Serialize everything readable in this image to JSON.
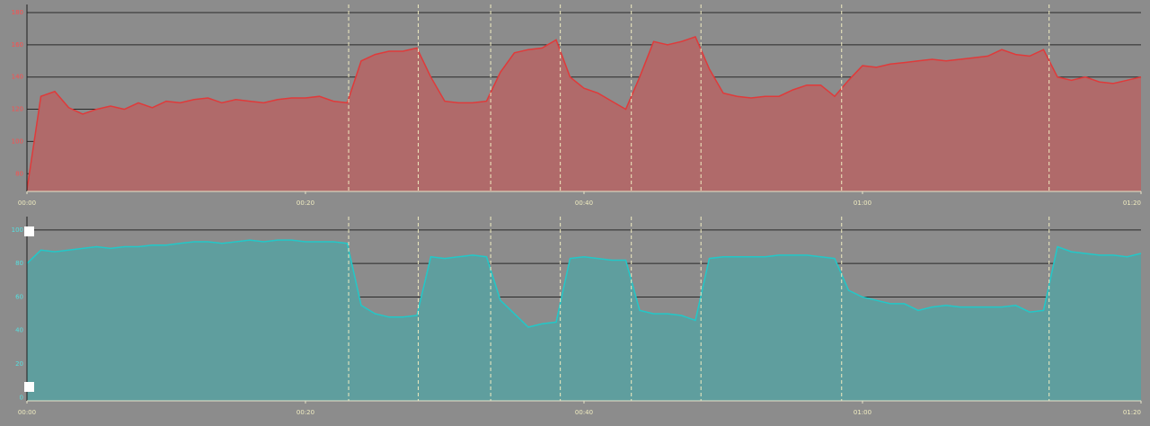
{
  "chart_data": [
    {
      "type": "area",
      "color": "#e03a3a",
      "fill": "#b06a6a",
      "label_color": "#ff4d4d",
      "x": [
        0,
        1,
        2,
        3,
        4,
        5,
        6,
        7,
        8,
        9,
        10,
        11,
        12,
        13,
        14,
        15,
        16,
        17,
        18,
        19,
        20,
        21,
        22,
        23,
        24,
        25,
        26,
        27,
        28,
        29,
        30,
        31,
        32,
        33,
        34,
        35,
        36,
        37,
        38,
        39,
        40,
        41,
        42,
        43,
        44,
        45,
        46,
        47,
        48,
        49,
        50,
        51,
        52,
        53,
        54,
        55,
        56,
        57,
        58,
        59,
        60,
        61,
        62,
        63,
        64,
        65,
        66,
        67,
        68,
        69,
        70,
        71,
        72,
        73,
        74,
        75,
        76,
        77,
        78,
        79,
        80
      ],
      "values": [
        70,
        128,
        131,
        121,
        117,
        120,
        122,
        120,
        124,
        121,
        125,
        124,
        126,
        127,
        124,
        126,
        125,
        124,
        126,
        127,
        127,
        128,
        125,
        124,
        150,
        154,
        156,
        156,
        158,
        140,
        125,
        124,
        124,
        125,
        143,
        155,
        157,
        158,
        163,
        140,
        133,
        130,
        125,
        120,
        140,
        162,
        160,
        162,
        165,
        145,
        130,
        128,
        127,
        128,
        128,
        132,
        135,
        135,
        128,
        138,
        147,
        146,
        148,
        149,
        150,
        151,
        150,
        151,
        152,
        153,
        157,
        154,
        153,
        157,
        140,
        138,
        140,
        137,
        136,
        138,
        140
      ],
      "xlim": [
        0,
        80
      ],
      "ylim": [
        69,
        185
      ],
      "xticks": [
        {
          "value": 0,
          "label": "00:00"
        },
        {
          "value": 20,
          "label": "00:20"
        },
        {
          "value": 40,
          "label": "00:40"
        },
        {
          "value": 60,
          "label": "01:00"
        },
        {
          "value": 80,
          "label": "01:20"
        }
      ],
      "yticks": [
        80,
        100,
        120,
        140,
        160,
        180
      ],
      "markers": [
        23.1,
        28.1,
        33.3,
        38.3,
        43.4,
        48.4,
        58.5,
        73.4
      ],
      "grid": true
    },
    {
      "type": "area",
      "color": "#22c8c8",
      "fill": "#5f9e9e",
      "label_color": "#55e0e0",
      "x": [
        0,
        1,
        2,
        3,
        4,
        5,
        6,
        7,
        8,
        9,
        10,
        11,
        12,
        13,
        14,
        15,
        16,
        17,
        18,
        19,
        20,
        21,
        22,
        23,
        24,
        25,
        26,
        27,
        28,
        29,
        30,
        31,
        32,
        33,
        34,
        35,
        36,
        37,
        38,
        39,
        40,
        41,
        42,
        43,
        44,
        45,
        46,
        47,
        48,
        49,
        50,
        51,
        52,
        53,
        54,
        55,
        56,
        57,
        58,
        59,
        60,
        61,
        62,
        63,
        64,
        65,
        66,
        67,
        68,
        69,
        70,
        71,
        72,
        73,
        74,
        75,
        76,
        77,
        78,
        79,
        80
      ],
      "values": [
        80,
        88,
        87,
        88,
        89,
        90,
        89,
        90,
        90,
        91,
        91,
        92,
        93,
        93,
        92,
        93,
        94,
        93,
        94,
        94,
        93,
        93,
        93,
        92,
        55,
        50,
        48,
        48,
        49,
        84,
        83,
        84,
        85,
        84,
        58,
        50,
        42,
        44,
        45,
        83,
        84,
        83,
        82,
        82,
        52,
        50,
        50,
        49,
        46,
        83,
        84,
        84,
        84,
        84,
        85,
        85,
        85,
        84,
        83,
        64,
        60,
        58,
        56,
        56,
        52,
        54,
        55,
        54,
        54,
        54,
        54,
        55,
        51,
        52,
        90,
        87,
        86,
        85,
        85,
        84,
        86
      ],
      "xlim": [
        0,
        80
      ],
      "ylim": [
        -2,
        108
      ],
      "xticks": [
        {
          "value": 0,
          "label": "00:00"
        },
        {
          "value": 20,
          "label": "00:20"
        },
        {
          "value": 40,
          "label": "00:40"
        },
        {
          "value": 60,
          "label": "01:00"
        },
        {
          "value": 80,
          "label": "01:20"
        }
      ],
      "yticks": [
        0,
        20,
        40,
        60,
        80,
        100
      ],
      "markers": [
        23.1,
        28.1,
        33.3,
        38.3,
        43.4,
        48.4,
        58.5,
        73.4
      ],
      "grid": true
    }
  ]
}
